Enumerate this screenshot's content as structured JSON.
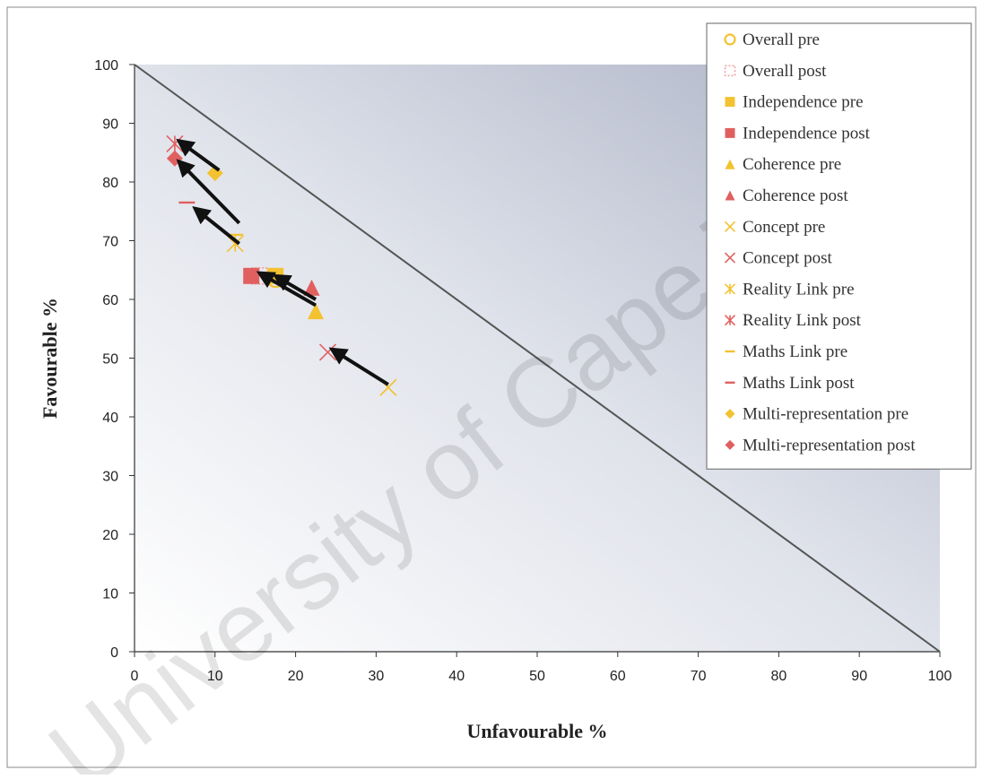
{
  "watermark": "University of Cape Town",
  "chart_data": {
    "type": "scatter",
    "title": "",
    "xlabel": "Unfavourable %",
    "ylabel": "Favourable %",
    "xlim": [
      0,
      100
    ],
    "ylim": [
      0,
      100
    ],
    "xticks": [
      0,
      10,
      20,
      30,
      40,
      50,
      60,
      70,
      80,
      90,
      100
    ],
    "yticks": [
      0,
      10,
      20,
      30,
      40,
      50,
      60,
      70,
      80,
      90,
      100
    ],
    "grid": false,
    "legend_position": "top-right",
    "reference_line": {
      "from": [
        0,
        100
      ],
      "to": [
        100,
        0
      ]
    },
    "series": [
      {
        "name": "Overall pre",
        "marker": "circle-open",
        "color": "#f2c230",
        "points": [
          [
            17.5,
            63.5
          ]
        ]
      },
      {
        "name": "Overall post",
        "marker": "square-open",
        "color": "#f0a0a0",
        "points": [
          [
            15.5,
            64
          ]
        ]
      },
      {
        "name": "Independence pre",
        "marker": "square",
        "color": "#f2c230",
        "points": [
          [
            17.5,
            64
          ]
        ]
      },
      {
        "name": "Independence post",
        "marker": "square",
        "color": "#e06060",
        "points": [
          [
            14.5,
            64
          ]
        ]
      },
      {
        "name": "Coherence pre",
        "marker": "triangle",
        "color": "#f2c230",
        "points": [
          [
            22.5,
            58
          ]
        ]
      },
      {
        "name": "Coherence post",
        "marker": "triangle",
        "color": "#e06060",
        "points": [
          [
            22,
            62
          ]
        ]
      },
      {
        "name": "Concept pre",
        "marker": "x",
        "color": "#f2c230",
        "points": [
          [
            31.5,
            45
          ]
        ]
      },
      {
        "name": "Concept post",
        "marker": "x",
        "color": "#e06060",
        "points": [
          [
            24,
            51
          ]
        ]
      },
      {
        "name": "Reality Link pre",
        "marker": "asterisk",
        "color": "#f2c230",
        "points": [
          [
            12.5,
            69.5
          ]
        ]
      },
      {
        "name": "Reality Link post",
        "marker": "asterisk",
        "color": "#e06060",
        "points": [
          [
            5,
            86.5
          ]
        ]
      },
      {
        "name": "Maths Link pre",
        "marker": "dash",
        "color": "#f2c230",
        "points": [
          [
            12.5,
            71
          ]
        ]
      },
      {
        "name": "Maths Link post",
        "marker": "dash",
        "color": "#e06060",
        "points": [
          [
            6.5,
            76.5
          ]
        ]
      },
      {
        "name": "Multi-representation pre",
        "marker": "diamond",
        "color": "#f2c230",
        "points": [
          [
            10,
            81.5
          ]
        ]
      },
      {
        "name": "Multi-representation post",
        "marker": "diamond",
        "color": "#e06060",
        "points": [
          [
            5,
            84
          ]
        ]
      }
    ],
    "arrows": [
      {
        "from": [
          10.5,
          82
        ],
        "to": [
          5.5,
          87
        ]
      },
      {
        "from": [
          13,
          73
        ],
        "to": [
          5.5,
          83.5
        ]
      },
      {
        "from": [
          13,
          69.5
        ],
        "to": [
          7.5,
          75.5
        ]
      },
      {
        "from": [
          22.5,
          59
        ],
        "to": [
          15.5,
          64.5
        ]
      },
      {
        "from": [
          22.5,
          60
        ],
        "to": [
          17.5,
          64
        ]
      },
      {
        "from": [
          31.5,
          45.5
        ],
        "to": [
          24.5,
          51.5
        ]
      }
    ]
  }
}
